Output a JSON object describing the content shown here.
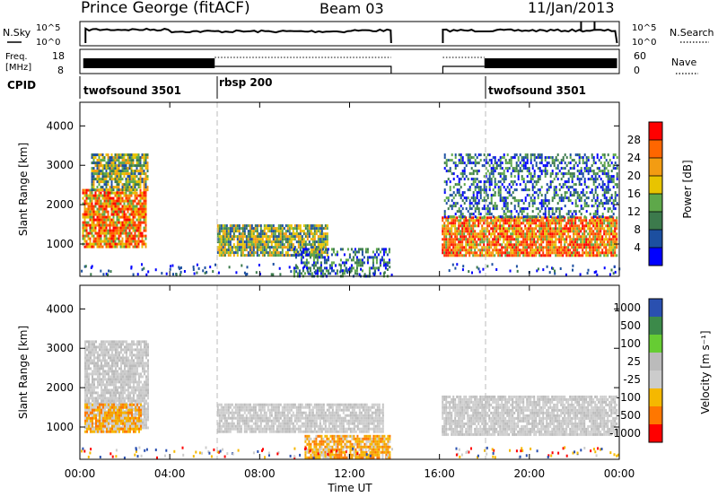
{
  "header": {
    "station": "Prince George (fitACF)",
    "beam": "Beam 03",
    "date": "11/Jan/2013"
  },
  "top_panels": {
    "nsky_label": "N.Sky",
    "nsky_ticks": [
      "10^5",
      "10^0"
    ],
    "nsearch_label": "N.Search",
    "nsearch_ticks": [
      "10^5",
      "10^0"
    ],
    "freq_label_1": "Freq.",
    "freq_label_2": "[MHz]",
    "freq_ticks": [
      "18",
      "8"
    ],
    "nave_label": "Nave",
    "nave_ticks": [
      "60",
      "0"
    ],
    "cpid_label": "CPID",
    "cpid_segments": [
      {
        "label": "twofsound 3501",
        "start": 0,
        "end": 6
      },
      {
        "label": "rbsp 200",
        "start": 6,
        "end": 18
      },
      {
        "label": "twofsound 3501",
        "start": 18,
        "end": 24
      }
    ]
  },
  "chart_data": [
    {
      "type": "heatmap",
      "title": "",
      "ylabel": "Slant Range [km]",
      "xlabel": "",
      "x_range_hours": [
        0,
        24
      ],
      "ylim": [
        180,
        4600
      ],
      "yticks": [
        "1000",
        "2000",
        "3000",
        "4000"
      ],
      "colorbar": {
        "label": "Power [dB]",
        "ticks": [
          "4",
          "8",
          "12",
          "16",
          "20",
          "24",
          "28"
        ],
        "colors": [
          "#0000ff",
          "#1c4fa0",
          "#3c7a4c",
          "#5ea84a",
          "#e8c400",
          "#f39c12",
          "#ff6600",
          "#ff0000"
        ]
      },
      "echo_regions": [
        {
          "t0": 0.1,
          "t1": 2.9,
          "r0": 900,
          "r1": 2400,
          "level": "high"
        },
        {
          "t0": 0.5,
          "t1": 3.0,
          "r0": 2400,
          "r1": 3300,
          "level": "mid"
        },
        {
          "t0": 6.1,
          "t1": 11.0,
          "r0": 700,
          "r1": 1500,
          "level": "mid"
        },
        {
          "t0": 9.5,
          "t1": 13.8,
          "r0": 200,
          "r1": 900,
          "level": "low"
        },
        {
          "t0": 16.1,
          "t1": 23.9,
          "r0": 700,
          "r1": 1700,
          "level": "high"
        },
        {
          "t0": 16.2,
          "t1": 23.9,
          "r0": 1700,
          "r1": 3300,
          "level": "low"
        }
      ]
    },
    {
      "type": "heatmap",
      "title": "",
      "ylabel": "Slant Range [km]",
      "xlabel": "Time UT",
      "x_range_hours": [
        0,
        24
      ],
      "ylim": [
        180,
        4600
      ],
      "yticks": [
        "1000",
        "2000",
        "3000",
        "4000"
      ],
      "xticks": [
        "00:00",
        "04:00",
        "08:00",
        "12:00",
        "16:00",
        "20:00",
        "00:00"
      ],
      "colorbar": {
        "label": "Velocity [m s⁻¹]",
        "ticks": [
          "1000",
          "500",
          "100",
          "25",
          "-25",
          "-100",
          "-500",
          "-1000"
        ],
        "colors": [
          "#2a50b0",
          "#3c8a4a",
          "#66cc33",
          "#bbbbbb",
          "#cccccc",
          "#f5b800",
          "#ff7700",
          "#ff0000"
        ]
      },
      "echo_regions": [
        {
          "t0": 0.2,
          "t1": 3.0,
          "r0": 1000,
          "r1": 3200,
          "level": "grey"
        },
        {
          "t0": 0.2,
          "t1": 2.7,
          "r0": 900,
          "r1": 1600,
          "level": "orange"
        },
        {
          "t0": 6.1,
          "t1": 13.5,
          "r0": 900,
          "r1": 1600,
          "level": "grey"
        },
        {
          "t0": 10.0,
          "t1": 13.8,
          "r0": 200,
          "r1": 800,
          "level": "orange"
        },
        {
          "t0": 16.1,
          "t1": 23.9,
          "r0": 800,
          "r1": 1800,
          "level": "grey"
        }
      ]
    }
  ]
}
